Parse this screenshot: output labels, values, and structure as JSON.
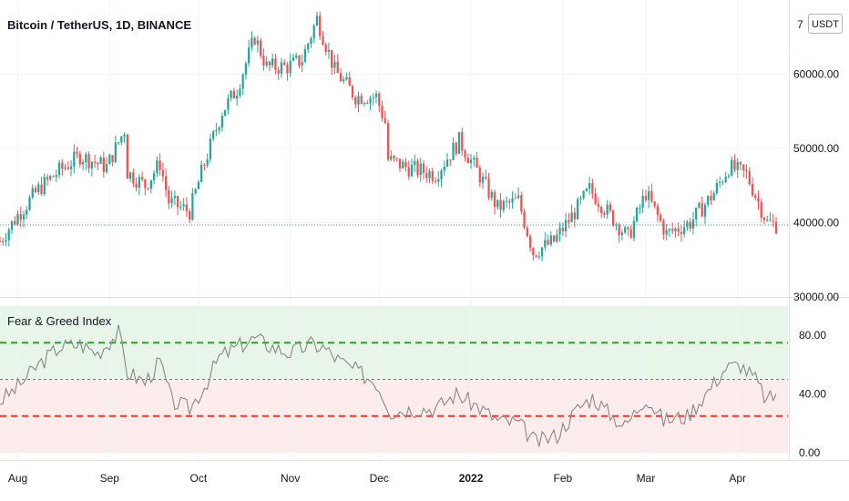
{
  "header": {
    "symbol_title": "Bitcoin / TetherUS, 1D, BINANCE",
    "currency_badge": "USDT",
    "top_tick": "7"
  },
  "indicator": {
    "title": "Fear & Greed Index"
  },
  "colors": {
    "up": "#26a69a",
    "down": "#ef5350",
    "greed_line": "#2ca02c",
    "fear_line": "#e53935",
    "greed_zone": "#e8f5e9",
    "fear_zone": "#fdecec",
    "index_line": "#888888",
    "last_price_line": "#26a69a",
    "grid": "#f0f3fa",
    "axis_border": "#e0e3eb"
  },
  "chart_data": [
    {
      "type": "candlestick",
      "name": "Bitcoin / TetherUS",
      "x_range": [
        "2021-07-26",
        "2022-04-18"
      ],
      "ylim": [
        30000,
        70000
      ],
      "y_ticks": [
        30000,
        40000,
        50000,
        60000
      ],
      "y_tick_labels": [
        "30000.00",
        "40000.00",
        "50000.00",
        "60000.00"
      ],
      "last_price": 39700,
      "close_path": [
        [
          "2021-07-26",
          37500
        ],
        [
          "2021-08-01",
          41000
        ],
        [
          "2021-08-08",
          44500
        ],
        [
          "2021-08-15",
          47000
        ],
        [
          "2021-08-22",
          49000
        ],
        [
          "2021-08-31",
          47500
        ],
        [
          "2021-09-06",
          52500
        ],
        [
          "2021-09-07",
          46800
        ],
        [
          "2021-09-13",
          45000
        ],
        [
          "2021-09-18",
          48000
        ],
        [
          "2021-09-21",
          42800
        ],
        [
          "2021-09-28",
          41500
        ],
        [
          "2021-10-03",
          48000
        ],
        [
          "2021-10-09",
          55000
        ],
        [
          "2021-10-14",
          58000
        ],
        [
          "2021-10-20",
          65000
        ],
        [
          "2021-10-24",
          61000
        ],
        [
          "2021-10-31",
          61000
        ],
        [
          "2021-11-05",
          62000
        ],
        [
          "2021-11-10",
          67500
        ],
        [
          "2021-11-16",
          60500
        ],
        [
          "2021-11-23",
          57000
        ],
        [
          "2021-11-30",
          57000
        ],
        [
          "2021-12-03",
          53500
        ],
        [
          "2021-12-04",
          48500
        ],
        [
          "2021-12-10",
          47500
        ],
        [
          "2021-12-20",
          46500
        ],
        [
          "2021-12-28",
          51000
        ],
        [
          "2022-01-03",
          47000
        ],
        [
          "2022-01-10",
          42000
        ],
        [
          "2022-01-17",
          43000
        ],
        [
          "2022-01-22",
          36000
        ],
        [
          "2022-01-29",
          37500
        ],
        [
          "2022-02-06",
          42000
        ],
        [
          "2022-02-10",
          44500
        ],
        [
          "2022-02-14",
          42500
        ],
        [
          "2022-02-23",
          38000
        ],
        [
          "2022-03-01",
          44000
        ],
        [
          "2022-03-08",
          38500
        ],
        [
          "2022-03-16",
          40000
        ],
        [
          "2022-03-24",
          44000
        ],
        [
          "2022-03-29",
          47500
        ],
        [
          "2022-04-04",
          46500
        ],
        [
          "2022-04-11",
          40000
        ],
        [
          "2022-04-14",
          39700
        ]
      ]
    },
    {
      "type": "line",
      "name": "Fear & Greed Index",
      "ylim": [
        -5,
        105
      ],
      "y_ticks": [
        0,
        40,
        80
      ],
      "y_tick_labels": [
        "0.00",
        "40.00",
        "80.00"
      ],
      "greed_level": 75,
      "mid_level": 50,
      "fear_level": 25,
      "path": [
        [
          "2021-07-26",
          35
        ],
        [
          "2021-08-01",
          45
        ],
        [
          "2021-08-08",
          60
        ],
        [
          "2021-08-15",
          72
        ],
        [
          "2021-08-22",
          74
        ],
        [
          "2021-08-28",
          68
        ],
        [
          "2021-09-04",
          82
        ],
        [
          "2021-09-07",
          55
        ],
        [
          "2021-09-13",
          48
        ],
        [
          "2021-09-18",
          62
        ],
        [
          "2021-09-22",
          35
        ],
        [
          "2021-09-28",
          30
        ],
        [
          "2021-10-03",
          45
        ],
        [
          "2021-10-08",
          65
        ],
        [
          "2021-10-14",
          72
        ],
        [
          "2021-10-20",
          78
        ],
        [
          "2021-10-26",
          72
        ],
        [
          "2021-11-01",
          68
        ],
        [
          "2021-11-08",
          74
        ],
        [
          "2021-11-12",
          72
        ],
        [
          "2021-11-18",
          62
        ],
        [
          "2021-11-24",
          55
        ],
        [
          "2021-11-30",
          48
        ],
        [
          "2021-12-05",
          28
        ],
        [
          "2021-12-12",
          30
        ],
        [
          "2021-12-20",
          30
        ],
        [
          "2021-12-27",
          40
        ],
        [
          "2022-01-03",
          32
        ],
        [
          "2022-01-10",
          22
        ],
        [
          "2022-01-17",
          20
        ],
        [
          "2022-01-23",
          7
        ],
        [
          "2022-01-30",
          12
        ],
        [
          "2022-02-06",
          30
        ],
        [
          "2022-02-11",
          38
        ],
        [
          "2022-02-16",
          28
        ],
        [
          "2022-02-22",
          18
        ],
        [
          "2022-03-01",
          38
        ],
        [
          "2022-03-07",
          22
        ],
        [
          "2022-03-15",
          25
        ],
        [
          "2022-03-22",
          42
        ],
        [
          "2022-03-28",
          58
        ],
        [
          "2022-04-02",
          60
        ],
        [
          "2022-04-07",
          50
        ],
        [
          "2022-04-11",
          35
        ],
        [
          "2022-04-14",
          40
        ]
      ]
    }
  ],
  "time_axis": {
    "labels": [
      {
        "text": "Aug",
        "date": "2021-08-01",
        "bold": false
      },
      {
        "text": "Sep",
        "date": "2021-09-01",
        "bold": false
      },
      {
        "text": "Oct",
        "date": "2021-10-01",
        "bold": false
      },
      {
        "text": "Nov",
        "date": "2021-11-01",
        "bold": false
      },
      {
        "text": "Dec",
        "date": "2021-12-01",
        "bold": false
      },
      {
        "text": "2022",
        "date": "2022-01-01",
        "bold": true
      },
      {
        "text": "Feb",
        "date": "2022-02-01",
        "bold": false
      },
      {
        "text": "Mar",
        "date": "2022-03-01",
        "bold": false
      },
      {
        "text": "Apr",
        "date": "2022-04-01",
        "bold": false
      }
    ]
  }
}
